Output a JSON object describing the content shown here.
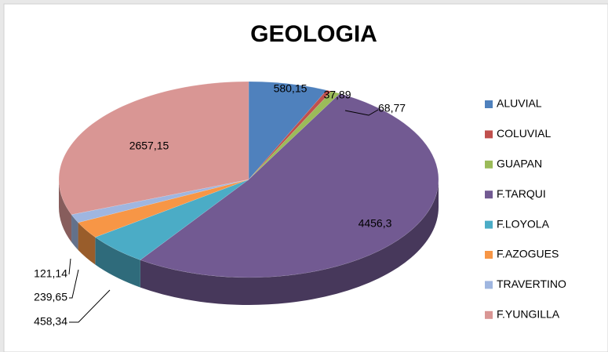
{
  "chart_data": {
    "type": "pie",
    "title": "GEOLOGIA",
    "categories": [
      "ALUVIAL",
      "COLUVIAL",
      "GUAPAN",
      "F.TARQUI",
      "F.LOYOLA",
      "F.AZOGUES",
      "TRAVERTINO",
      "F.YUNGILLA"
    ],
    "values": [
      580.15,
      37.89,
      68.77,
      4456.3,
      458.34,
      239.65,
      121.14,
      2657.15
    ],
    "value_labels": [
      "580,15",
      "37,89",
      "68,77",
      "4456,3",
      "458,34",
      "239,65",
      "121,14",
      "2657,15"
    ],
    "colors": [
      "#4f81bd",
      "#c0504d",
      "#9bbb59",
      "#725a92",
      "#4bacc6",
      "#f79646",
      "#9fb6e0",
      "#d99694"
    ],
    "legend": "right"
  }
}
